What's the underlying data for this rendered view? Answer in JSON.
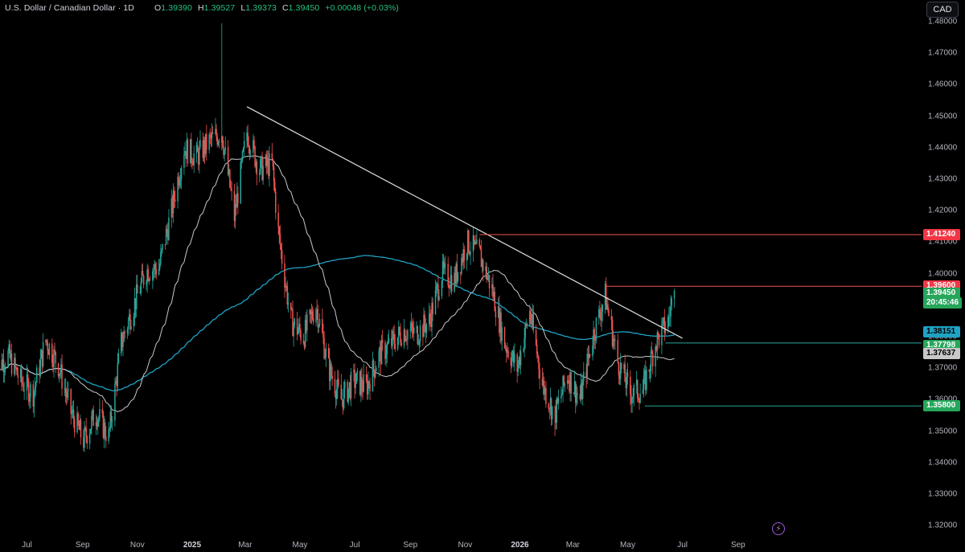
{
  "legend": {
    "symbol": "U.S. Dollar / Canadian Dollar · 1D",
    "o_label": "O",
    "o_value": "1.39390",
    "h_label": "H",
    "h_value": "1.39527",
    "l_label": "L",
    "l_value": "1.39373",
    "c_label": "C",
    "c_value": "1.39450",
    "change": "+0.00048 (+0.03%)"
  },
  "currency_button": "CAD",
  "colors": {
    "background": "#000000",
    "up": "#26a69a",
    "down": "#ef5350",
    "ma_fast": "#c8c8c8",
    "ma_slow": "#1fa2c4",
    "trendline": "#e0e0e0",
    "resistance": "#ef5350",
    "support": "#26a69a"
  },
  "price_axis": {
    "ticks": [
      "1.48000",
      "1.47000",
      "1.46000",
      "1.45000",
      "1.44000",
      "1.43000",
      "1.42000",
      "1.41000",
      "1.40000",
      "1.39000",
      "1.38000",
      "1.37000",
      "1.36000",
      "1.35000",
      "1.34000",
      "1.33000",
      "1.32000"
    ]
  },
  "time_axis": {
    "ticks": [
      {
        "label": "Jul",
        "year": false
      },
      {
        "label": "Sep",
        "year": false
      },
      {
        "label": "Nov",
        "year": false
      },
      {
        "label": "2025",
        "year": true
      },
      {
        "label": "Mar",
        "year": false
      },
      {
        "label": "May",
        "year": false
      },
      {
        "label": "Jul",
        "year": false
      },
      {
        "label": "Sep",
        "year": false
      },
      {
        "label": "Nov",
        "year": false
      },
      {
        "label": "2026",
        "year": true
      },
      {
        "label": "Mar",
        "year": false
      },
      {
        "label": "May",
        "year": false
      },
      {
        "label": "Jul",
        "year": false
      },
      {
        "label": "Sep",
        "year": false
      }
    ]
  },
  "price_tags": {
    "resistance_high": {
      "value": "1.41240",
      "bg": "#f23645",
      "fg": "#ffffff"
    },
    "resistance_mid": {
      "value": "1.39600",
      "bg": "#f23645",
      "fg": "#ffffff"
    },
    "last_price": {
      "value": "1.39450",
      "bg": "#26a65b",
      "fg": "#ffffff"
    },
    "countdown": {
      "value": "20:45:46",
      "bg": "#26a65b",
      "fg": "#ffffff"
    },
    "ma_slow": {
      "value": "1.38151",
      "bg": "#1fa2c4",
      "fg": "#000000"
    },
    "support_mid": {
      "value": "1.37798",
      "bg": "#26a65b",
      "fg": "#ffffff"
    },
    "ma_fast": {
      "value": "1.37637",
      "bg": "#c8c8c8",
      "fg": "#000000"
    },
    "support_low": {
      "value": "1.35800",
      "bg": "#26a65b",
      "fg": "#ffffff"
    }
  },
  "chart_data": {
    "type": "candlestick",
    "title": "U.S. Dollar / Canadian Dollar · 1D",
    "ylim": [
      1.3165,
      1.4815
    ],
    "y_scale": "linear",
    "grid": false,
    "price_path_anchors": [
      {
        "date": "2024-05-27",
        "close": 1.37
      },
      {
        "date": "2024-06-10",
        "close": 1.374
      },
      {
        "date": "2024-06-24",
        "close": 1.366
      },
      {
        "date": "2024-07-08",
        "close": 1.362
      },
      {
        "date": "2024-07-22",
        "close": 1.379
      },
      {
        "date": "2024-08-05",
        "close": 1.371
      },
      {
        "date": "2024-08-19",
        "close": 1.356
      },
      {
        "date": "2024-09-02",
        "close": 1.347
      },
      {
        "date": "2024-09-16",
        "close": 1.356
      },
      {
        "date": "2024-09-30",
        "close": 1.348
      },
      {
        "date": "2024-10-14",
        "close": 1.378
      },
      {
        "date": "2024-10-28",
        "close": 1.39
      },
      {
        "date": "2024-11-11",
        "close": 1.401
      },
      {
        "date": "2024-11-25",
        "close": 1.402
      },
      {
        "date": "2024-12-09",
        "close": 1.42
      },
      {
        "date": "2024-12-23",
        "close": 1.44
      },
      {
        "date": "2025-01-06",
        "close": 1.437
      },
      {
        "date": "2025-01-20",
        "close": 1.442
      },
      {
        "date": "2025-02-03",
        "close": 1.445
      },
      {
        "date": "2025-02-17",
        "close": 1.418
      },
      {
        "date": "2025-03-03",
        "close": 1.445
      },
      {
        "date": "2025-03-17",
        "close": 1.433
      },
      {
        "date": "2025-03-31",
        "close": 1.435
      },
      {
        "date": "2025-04-07",
        "close": 1.413
      },
      {
        "date": "2025-04-21",
        "close": 1.385
      },
      {
        "date": "2025-05-05",
        "close": 1.38
      },
      {
        "date": "2025-05-19",
        "close": 1.39
      },
      {
        "date": "2025-06-02",
        "close": 1.37
      },
      {
        "date": "2025-06-16",
        "close": 1.36
      },
      {
        "date": "2025-06-30",
        "close": 1.366
      },
      {
        "date": "2025-07-14",
        "close": 1.364
      },
      {
        "date": "2025-07-28",
        "close": 1.374
      },
      {
        "date": "2025-08-11",
        "close": 1.378
      },
      {
        "date": "2025-08-25",
        "close": 1.382
      },
      {
        "date": "2025-09-08",
        "close": 1.381
      },
      {
        "date": "2025-09-22",
        "close": 1.385
      },
      {
        "date": "2025-10-06",
        "close": 1.4
      },
      {
        "date": "2025-10-20",
        "close": 1.398
      },
      {
        "date": "2025-11-03",
        "close": 1.41
      },
      {
        "date": "2025-11-17",
        "close": 1.406
      },
      {
        "date": "2025-12-01",
        "close": 1.395
      },
      {
        "date": "2025-12-15",
        "close": 1.378
      },
      {
        "date": "2025-12-29",
        "close": 1.37
      },
      {
        "date": "2026-01-12",
        "close": 1.388
      },
      {
        "date": "2026-01-26",
        "close": 1.365
      },
      {
        "date": "2026-02-09",
        "close": 1.355
      },
      {
        "date": "2026-02-23",
        "close": 1.368
      },
      {
        "date": "2026-03-09",
        "close": 1.36
      },
      {
        "date": "2026-03-23",
        "close": 1.38
      },
      {
        "date": "2026-04-06",
        "close": 1.393
      },
      {
        "date": "2026-04-20",
        "close": 1.372
      },
      {
        "date": "2026-05-04",
        "close": 1.362
      },
      {
        "date": "2026-05-18",
        "close": 1.363
      },
      {
        "date": "2026-06-01",
        "close": 1.378
      },
      {
        "date": "2026-06-15",
        "close": 1.385
      },
      {
        "date": "2026-06-22",
        "close": 1.3945
      }
    ],
    "high_spikes": [
      {
        "date": "2025-02-03",
        "high": 1.4795
      },
      {
        "date": "2026-02-09",
        "low": 1.3485
      }
    ],
    "indicators": {
      "ma_fast": {
        "last": 1.37637
      },
      "ma_slow": {
        "last": 1.38151
      }
    },
    "drawings": {
      "trendline": {
        "from": {
          "date": "2025-03-03",
          "price": 1.453
        },
        "to": {
          "date": "2026-07-01",
          "price": 1.3795
        }
      },
      "resistance_high": {
        "from_date": "2025-11-17",
        "price": 1.4124
      },
      "resistance_mid": {
        "from_date": "2026-04-06",
        "price": 1.396
      },
      "support_mid": {
        "from_date": "2026-06-12",
        "price": 1.37798
      },
      "support_low": {
        "from_date": "2026-05-20",
        "price": 1.358
      }
    },
    "last": {
      "price": 1.3945,
      "countdown": "20:45:46"
    }
  }
}
